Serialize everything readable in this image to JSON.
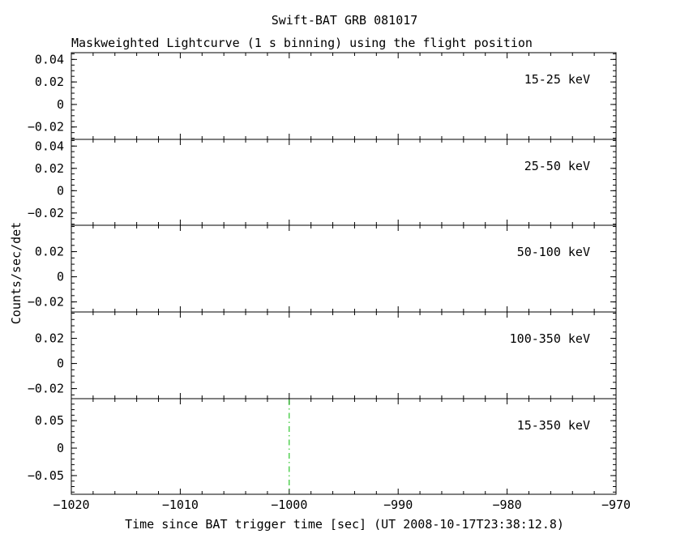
{
  "chart_data": {
    "type": "line",
    "title": "Swift-BAT GRB 081017",
    "subtitle": "Maskweighted Lightcurve (1 s binning) using the flight position",
    "xlabel": "Time since BAT trigger time [sec] (UT 2008-10-17T23:38:12.8)",
    "ylabel": "Counts/sec/det",
    "xlim": [
      -1020,
      -970
    ],
    "xticks": [
      -1020,
      -1010,
      -1000,
      -990,
      -980,
      -970
    ],
    "x_minor_step": 2,
    "grid": false,
    "legend_position": "inside-top-right-per-panel",
    "panels": [
      {
        "label": "15-25 keV",
        "color": "#000000",
        "ylim": [
          -0.031,
          0.046
        ],
        "yticks": [
          0.04,
          0.02,
          0,
          -0.02
        ],
        "y_minor_step": 0.005,
        "series": []
      },
      {
        "label": "25-50 keV",
        "color": "#ee0000",
        "ylim": [
          -0.031,
          0.046
        ],
        "yticks": [
          0.04,
          0.02,
          0,
          -0.02
        ],
        "y_minor_step": 0.005,
        "series": []
      },
      {
        "label": "50-100 keV",
        "color": "#00bb00",
        "ylim": [
          -0.028,
          0.041
        ],
        "yticks": [
          0.02,
          0,
          -0.02
        ],
        "y_minor_step": 0.005,
        "series": []
      },
      {
        "label": "100-350 keV",
        "color": "#2222cc",
        "ylim": [
          -0.028,
          0.041
        ],
        "yticks": [
          0.02,
          0,
          -0.02
        ],
        "y_minor_step": 0.005,
        "series": []
      },
      {
        "label": "15-350 keV",
        "color": "#cc22cc",
        "ylim": [
          -0.084,
          0.09
        ],
        "yticks": [
          0.05,
          0,
          -0.05
        ],
        "y_minor_step": 0.01,
        "series": [],
        "vline": {
          "x": -1000,
          "color": "#00bb00",
          "style": "dash-dot"
        }
      }
    ]
  }
}
